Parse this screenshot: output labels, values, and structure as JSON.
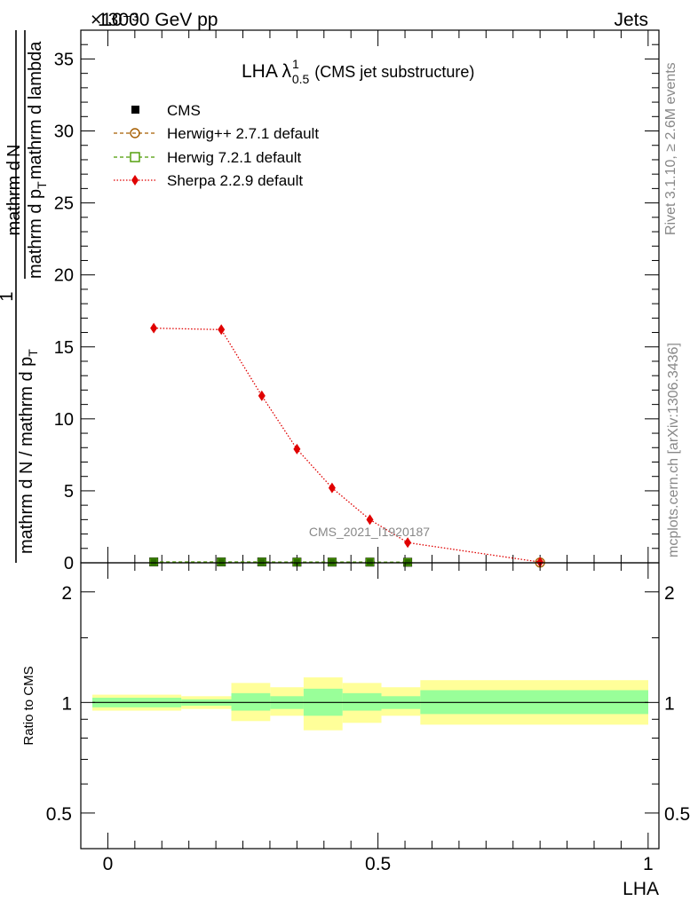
{
  "header": {
    "left": "13000 GeV pp",
    "right": "Jets",
    "exponent": "×10⁻³"
  },
  "side_labels": {
    "rivet": "Rivet 3.1.10, ≥ 2.6M events",
    "mcplots": "mcplots.cern.ch [arXiv:1306.3436]"
  },
  "watermark": "CMS_2021_I1920187",
  "chart_data": [
    {
      "type": "line",
      "title": "LHA λ",
      "title_super": "1",
      "title_sub": "0.5",
      "title_suffix": "(CMS jet substructure)",
      "ylabel": {
        "numerator": "1",
        "denominator": "mathrm d N / mathrm d p",
        "denominator_sub": "T",
        "deriv_numerator": "mathrm d",
        "deriv_numerator_N": "N",
        "deriv_denominator": "mathrm d p",
        "deriv_denominator_sub": "T",
        "deriv_denominator_tail": "mathrm d lambda"
      },
      "ylim": [
        0,
        37
      ],
      "xlim": [
        -0.05,
        1.02
      ],
      "y_ticks": [
        "0",
        "5",
        "10",
        "15",
        "20",
        "25",
        "30",
        "35"
      ],
      "legend_position": "top-left",
      "series": [
        {
          "name": "CMS",
          "style": "black-square",
          "x": [
            0.085,
            0.21,
            0.285,
            0.35,
            0.415,
            0.485,
            0.555
          ],
          "y": [
            0.06,
            0.06,
            0.06,
            0.05,
            0.05,
            0.05,
            0.04
          ]
        },
        {
          "name": "Herwig++ 2.7.1 default",
          "style": "brown-open-circle-dashed",
          "x": [
            0.8
          ],
          "y": [
            0.02
          ]
        },
        {
          "name": "Herwig 7.2.1 default",
          "style": "green-open-square-dashed",
          "x": [
            0.085,
            0.21,
            0.285,
            0.35,
            0.415,
            0.485,
            0.555
          ],
          "y": [
            0.06,
            0.06,
            0.06,
            0.05,
            0.05,
            0.05,
            0.04
          ]
        },
        {
          "name": "Sherpa 2.2.9 default",
          "style": "red-diamond-dotted",
          "x": [
            0.085,
            0.21,
            0.285,
            0.35,
            0.415,
            0.485,
            0.555,
            0.8
          ],
          "y": [
            16.3,
            16.2,
            11.6,
            7.9,
            5.2,
            3.0,
            1.4,
            0.05
          ]
        }
      ]
    },
    {
      "type": "area",
      "ylabel": "Ratio to CMS",
      "xlabel": "LHA",
      "log_y": true,
      "ylim": [
        0.4,
        2.4
      ],
      "y_ticks": [
        "0.5",
        "1",
        "2"
      ],
      "x_ticks": [
        "0",
        "0.5",
        "1"
      ],
      "bands": {
        "edges": [
          0,
          0.16,
          0.25,
          0.32,
          0.38,
          0.45,
          0.52,
          0.59,
          1.0
        ],
        "inner_low": [
          0.97,
          0.98,
          0.95,
          0.96,
          0.92,
          0.95,
          0.96,
          0.93
        ],
        "inner_high": [
          1.03,
          1.02,
          1.06,
          1.04,
          1.09,
          1.06,
          1.04,
          1.08
        ],
        "outer_low": [
          0.95,
          0.96,
          0.89,
          0.92,
          0.84,
          0.88,
          0.92,
          0.87
        ],
        "outer_high": [
          1.05,
          1.04,
          1.13,
          1.1,
          1.17,
          1.13,
          1.1,
          1.15
        ],
        "inner_color": "#99ff99",
        "outer_color": "#ffff99"
      }
    }
  ]
}
